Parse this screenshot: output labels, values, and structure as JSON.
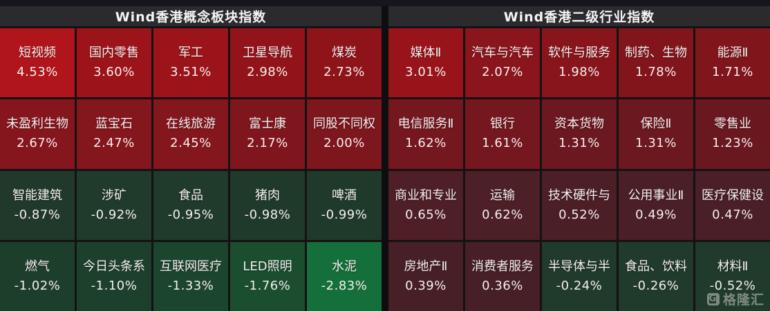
{
  "chart_data": [
    {
      "type": "heatmap",
      "title": "Wind香港概念板块指数",
      "rows": 4,
      "columns": 5,
      "value_unit": "%",
      "cells": [
        {
          "name": "短视频",
          "value": "4.53%",
          "change_pct": 4.53,
          "bg": "#b0151b"
        },
        {
          "name": "国内零售",
          "value": "3.60%",
          "change_pct": 3.6,
          "bg": "#9c141a"
        },
        {
          "name": "军工",
          "value": "3.51%",
          "change_pct": 3.51,
          "bg": "#9b141a"
        },
        {
          "name": "卫星导航",
          "value": "2.98%",
          "change_pct": 2.98,
          "bg": "#92141a"
        },
        {
          "name": "煤炭",
          "value": "2.73%",
          "change_pct": 2.73,
          "bg": "#8e141a"
        },
        {
          "name": "未盈利生物",
          "value": "2.67%",
          "change_pct": 2.67,
          "bg": "#86161d"
        },
        {
          "name": "蓝宝石",
          "value": "2.47%",
          "change_pct": 2.47,
          "bg": "#84161d"
        },
        {
          "name": "在线旅游",
          "value": "2.45%",
          "change_pct": 2.45,
          "bg": "#84161d"
        },
        {
          "name": "富士康",
          "value": "2.17%",
          "change_pct": 2.17,
          "bg": "#80161d"
        },
        {
          "name": "同股不同权",
          "value": "2.00%",
          "change_pct": 2.0,
          "bg": "#7d161d"
        },
        {
          "name": "智能建筑",
          "value": "-0.87%",
          "change_pct": -0.87,
          "bg": "#21392b"
        },
        {
          "name": "涉矿",
          "value": "-0.92%",
          "change_pct": -0.92,
          "bg": "#203a2b"
        },
        {
          "name": "食品",
          "value": "-0.95%",
          "change_pct": -0.95,
          "bg": "#203a2b"
        },
        {
          "name": "猪肉",
          "value": "-0.98%",
          "change_pct": -0.98,
          "bg": "#1f3a2b"
        },
        {
          "name": "啤酒",
          "value": "-0.99%",
          "change_pct": -0.99,
          "bg": "#1f3a2b"
        },
        {
          "name": "燃气",
          "value": "-1.02%",
          "change_pct": -1.02,
          "bg": "#1e3e2c"
        },
        {
          "name": "今日头条系",
          "value": "-1.10%",
          "change_pct": -1.1,
          "bg": "#1d402c"
        },
        {
          "name": "互联网医疗",
          "value": "-1.33%",
          "change_pct": -1.33,
          "bg": "#1c452d"
        },
        {
          "name": "LED照明",
          "value": "-1.76%",
          "change_pct": -1.76,
          "bg": "#1a4e2f"
        },
        {
          "name": "水泥",
          "value": "-2.83%",
          "change_pct": -2.83,
          "bg": "#156f3a"
        }
      ]
    },
    {
      "type": "heatmap",
      "title": "Wind香港二级行业指数",
      "rows": 4,
      "columns": 5,
      "value_unit": "%",
      "cells": [
        {
          "name": "媒体Ⅱ",
          "value": "3.01%",
          "change_pct": 3.01,
          "bg": "#98141a"
        },
        {
          "name": "汽车与汽车",
          "value": "2.07%",
          "change_pct": 2.07,
          "bg": "#8a151c"
        },
        {
          "name": "软件与服务",
          "value": "1.98%",
          "change_pct": 1.98,
          "bg": "#88151c"
        },
        {
          "name": "制药、生物",
          "value": "1.78%",
          "change_pct": 1.78,
          "bg": "#82151c"
        },
        {
          "name": "能源Ⅱ",
          "value": "1.71%",
          "change_pct": 1.71,
          "bg": "#80151c"
        },
        {
          "name": "电信服务Ⅱ",
          "value": "1.62%",
          "change_pct": 1.62,
          "bg": "#75171f"
        },
        {
          "name": "银行",
          "value": "1.61%",
          "change_pct": 1.61,
          "bg": "#75171f"
        },
        {
          "name": "资本货物",
          "value": "1.31%",
          "change_pct": 1.31,
          "bg": "#6b1820"
        },
        {
          "name": "保险Ⅱ",
          "value": "1.31%",
          "change_pct": 1.31,
          "bg": "#6b1820"
        },
        {
          "name": "零售业",
          "value": "1.23%",
          "change_pct": 1.23,
          "bg": "#691820"
        },
        {
          "name": "商业和专业",
          "value": "0.65%",
          "change_pct": 0.65,
          "bg": "#4e1f27"
        },
        {
          "name": "运输",
          "value": "0.62%",
          "change_pct": 0.62,
          "bg": "#4d1f27"
        },
        {
          "name": "技术硬件与",
          "value": "0.52%",
          "change_pct": 0.52,
          "bg": "#4c1f27"
        },
        {
          "name": "公用事业Ⅱ",
          "value": "0.49%",
          "change_pct": 0.49,
          "bg": "#4b1f27"
        },
        {
          "name": "医疗保健设",
          "value": "0.47%",
          "change_pct": 0.47,
          "bg": "#4b1f27"
        },
        {
          "name": "房地产Ⅱ",
          "value": "0.39%",
          "change_pct": 0.39,
          "bg": "#471f27"
        },
        {
          "name": "消费者服务",
          "value": "0.36%",
          "change_pct": 0.36,
          "bg": "#461f27"
        },
        {
          "name": "半导体与半",
          "value": "-0.24%",
          "change_pct": -0.24,
          "bg": "#203a2b"
        },
        {
          "name": "食品、饮料",
          "value": "-0.26%",
          "change_pct": -0.26,
          "bg": "#203a2b"
        },
        {
          "name": "材料Ⅱ",
          "value": "-0.52%",
          "change_pct": -0.52,
          "bg": "#203b2b"
        }
      ]
    }
  ],
  "watermark": {
    "logo_letter": "G",
    "brand": "格隆汇"
  },
  "theme": {
    "top_strip": "#16161e",
    "header_bg": "#2b2b2e",
    "header_text": "#f5f5f5",
    "cell_text": "#f5efef",
    "divider": "#0e0e10",
    "grid_gap": "#141212",
    "gain_strong": "#b0151b",
    "gain_weak": "#4b1f27",
    "loss_weak": "#203a2b",
    "loss_strong": "#156f3a"
  }
}
